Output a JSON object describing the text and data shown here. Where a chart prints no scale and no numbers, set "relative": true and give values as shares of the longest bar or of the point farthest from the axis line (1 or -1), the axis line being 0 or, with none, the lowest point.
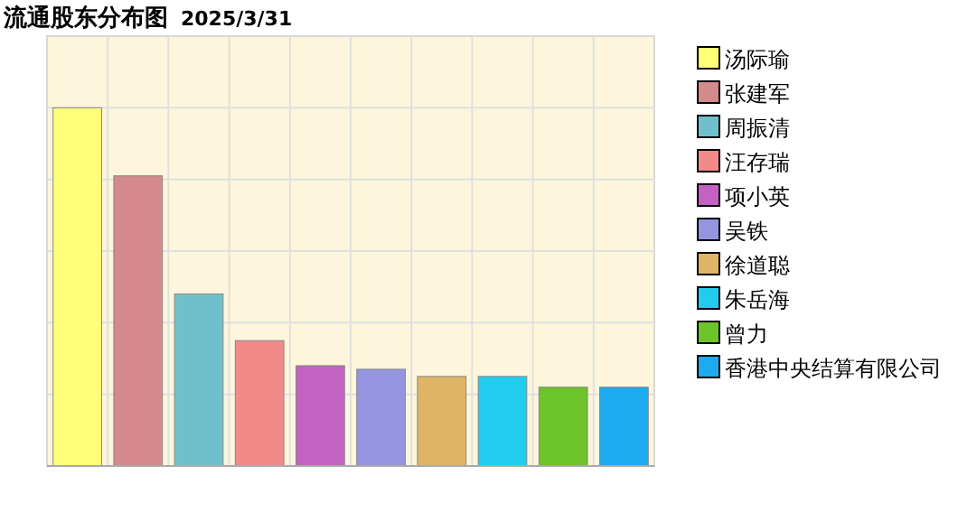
{
  "chart_data": {
    "type": "bar",
    "title": "流通股东分布图",
    "subtitle": "2025/3/31",
    "relative": true,
    "grid": true,
    "legend": "right",
    "stacked": true,
    "categories": [
      null,
      null,
      null,
      null,
      null,
      null,
      null,
      null,
      null,
      null
    ],
    "series": [
      {
        "name": "汤际瑜",
        "color": "#ffff77",
        "values": [
          1,
          null,
          null,
          null,
          null,
          null,
          null,
          null,
          null,
          null
        ]
      },
      {
        "name": "张建军",
        "color": "#d48a8a",
        "values": [
          null,
          0.81,
          null,
          null,
          null,
          null,
          null,
          null,
          null,
          null
        ]
      },
      {
        "name": "周振清",
        "color": "#70c0cc",
        "values": [
          null,
          null,
          0.48,
          null,
          null,
          null,
          null,
          null,
          null,
          null
        ]
      },
      {
        "name": "汪存瑞",
        "color": "#f28a8a",
        "values": [
          null,
          null,
          null,
          0.35,
          null,
          null,
          null,
          null,
          null,
          null
        ]
      },
      {
        "name": "项小英",
        "color": "#c462c4",
        "values": [
          null,
          null,
          null,
          null,
          0.28,
          null,
          null,
          null,
          null,
          null
        ]
      },
      {
        "name": "吴铁",
        "color": "#9494e0",
        "values": [
          null,
          null,
          null,
          null,
          null,
          0.27,
          null,
          null,
          null,
          null
        ]
      },
      {
        "name": "徐道聪",
        "color": "#dfb466",
        "values": [
          null,
          null,
          null,
          null,
          null,
          null,
          0.25,
          null,
          null,
          null
        ]
      },
      {
        "name": "朱岳海",
        "color": "#22ccee",
        "values": [
          null,
          null,
          null,
          null,
          null,
          null,
          null,
          0.25,
          null,
          null
        ]
      },
      {
        "name": "曾力",
        "color": "#6cc42a",
        "values": [
          null,
          null,
          null,
          null,
          null,
          null,
          null,
          null,
          0.22,
          null
        ]
      },
      {
        "name": "香港中央结算有限公司",
        "color": "#1eaaee",
        "values": [
          null,
          null,
          null,
          null,
          null,
          null,
          null,
          null,
          null,
          0.22
        ]
      }
    ]
  }
}
